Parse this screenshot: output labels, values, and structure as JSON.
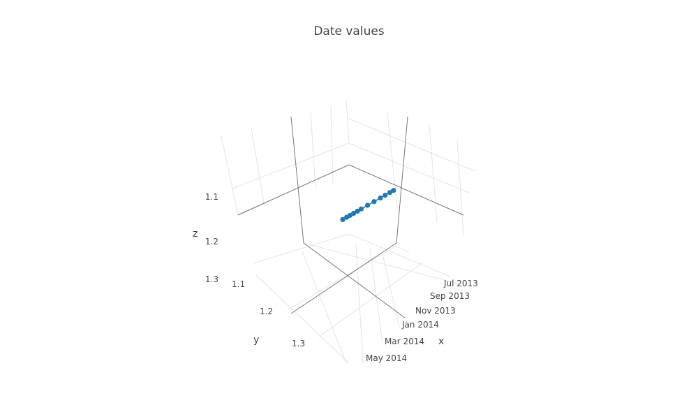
{
  "chart_data": {
    "type": "scatter3d",
    "mode": "lines+markers",
    "title": "Date values",
    "axes": {
      "x": {
        "label": "x",
        "type": "date",
        "ticks": [
          "Jul 2013",
          "Sep 2013",
          "Nov 2013",
          "Jan 2014",
          "Mar 2014",
          "May 2014"
        ]
      },
      "y": {
        "label": "y",
        "ticks": [
          "1.1",
          "1.2",
          "1.3"
        ]
      },
      "z": {
        "label": "z",
        "ticks": [
          "1.1",
          "1.2",
          "1.3"
        ]
      }
    },
    "grid": true,
    "marker_color": "#1f77b4",
    "series": [
      {
        "points": [
          {
            "x": "2013-06-25",
            "y": 1.18,
            "z": 1.24
          },
          {
            "x": "2013-07-15",
            "y": 1.19,
            "z": 1.24
          },
          {
            "x": "2013-08-10",
            "y": 1.2,
            "z": 1.24
          },
          {
            "x": "2013-09-05",
            "y": 1.21,
            "z": 1.24
          },
          {
            "x": "2013-10-10",
            "y": 1.22,
            "z": 1.24
          },
          {
            "x": "2013-11-15",
            "y": 1.23,
            "z": 1.24
          },
          {
            "x": "2013-12-20",
            "y": 1.24,
            "z": 1.24
          },
          {
            "x": "2014-01-10",
            "y": 1.245,
            "z": 1.24
          },
          {
            "x": "2014-01-31",
            "y": 1.25,
            "z": 1.24
          },
          {
            "x": "2014-02-20",
            "y": 1.255,
            "z": 1.24
          },
          {
            "x": "2014-03-10",
            "y": 1.26,
            "z": 1.24
          },
          {
            "x": "2014-04-01",
            "y": 1.265,
            "z": 1.24
          }
        ]
      }
    ]
  }
}
